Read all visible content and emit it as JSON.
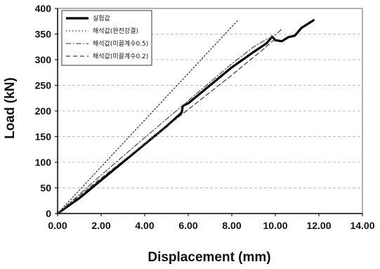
{
  "chart_data": {
    "type": "line",
    "title": "",
    "xlabel": "Displacement (mm)",
    "ylabel": "Load (kN)",
    "xlim": [
      0,
      14
    ],
    "ylim": [
      0,
      400
    ],
    "xticks": [
      "0.00",
      "2.00",
      "4.00",
      "6.00",
      "8.00",
      "10.00",
      "12.00",
      "14.00"
    ],
    "yticks": [
      "0",
      "50",
      "100",
      "150",
      "200",
      "250",
      "300",
      "350",
      "400"
    ],
    "grid": "horizontal dashed",
    "legend_position": "top-left",
    "series": [
      {
        "name": "실험값",
        "style": "solid-thick",
        "color": "#000000",
        "x": [
          0.0,
          1.0,
          2.0,
          3.0,
          4.0,
          5.0,
          5.7,
          5.75,
          6.0,
          7.0,
          8.0,
          9.0,
          9.6,
          9.85,
          10.0,
          10.3,
          10.6,
          10.9,
          11.2,
          11.5,
          11.75
        ],
        "y": [
          0,
          30,
          65,
          100,
          135,
          170,
          197,
          210,
          215,
          250,
          285,
          315,
          332,
          345,
          338,
          336,
          344,
          347,
          362,
          370,
          377
        ]
      },
      {
        "name": "해석값(완전강결)",
        "style": "dotted",
        "color": "#333333",
        "x": [
          0.0,
          8.3
        ],
        "y": [
          0,
          378
        ]
      },
      {
        "name": "해석값(미끌계수0.5)",
        "style": "dash-dot",
        "color": "#555555",
        "x": [
          0.0,
          2.0,
          4.0,
          6.0,
          8.0,
          9.0,
          9.6,
          9.9,
          10.1,
          10.2,
          10.3
        ],
        "y": [
          0,
          75,
          148,
          220,
          292,
          325,
          340,
          345,
          352,
          356,
          360
        ]
      },
      {
        "name": "해석값(미끌계수0.2)",
        "style": "dashed",
        "color": "#444444",
        "x": [
          0.0,
          2.0,
          4.0,
          6.0,
          8.0,
          9.0,
          9.5,
          9.8,
          10.0
        ],
        "y": [
          0,
          69,
          136,
          203,
          270,
          305,
          322,
          334,
          340
        ]
      }
    ],
    "colors": {
      "plot_border": "#666666",
      "grid": "#bdbdbd",
      "legend_border": "#333333"
    }
  }
}
